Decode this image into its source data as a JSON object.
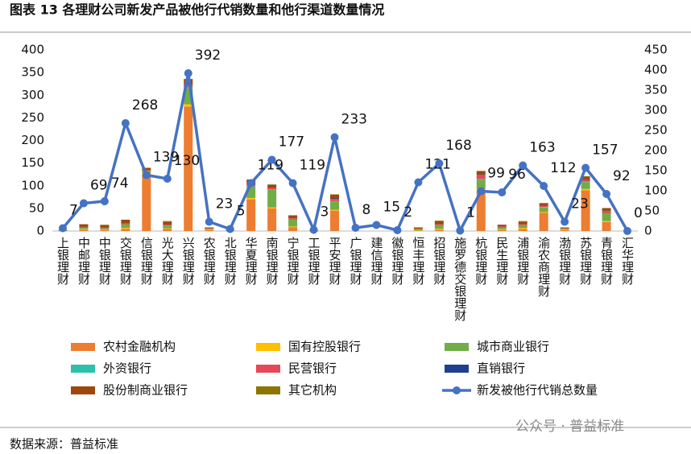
{
  "chart_data": {
    "type": "bar",
    "title": "图表 13 各理财公司新发产品被他行代销数量和他行渠道数量情况",
    "source": "数据来源：普益标准",
    "watermark": "公众号 · 普益标准",
    "categories": [
      "上银理财",
      "中邮理财",
      "中银理财",
      "交银理财",
      "信银理财",
      "光大理财",
      "兴银理财",
      "农银理财",
      "北银理财",
      "华夏理财",
      "南银理财",
      "宁银理财",
      "工银理财",
      "平安理财",
      "广银理财",
      "建信理财",
      "徽银理财",
      "恒丰理财",
      "招银理财",
      "施罗德交银理财",
      "杭银理财",
      "民生理财",
      "浦银理财",
      "渝农商理财",
      "渤银理财",
      "苏银理财",
      "青银理财",
      "汇华理财"
    ],
    "ylim": [
      0,
      400
    ],
    "yticks": [
      0,
      50,
      100,
      150,
      200,
      250,
      300,
      350,
      400
    ],
    "y2lim": [
      0,
      450
    ],
    "y2ticks": [
      0,
      50,
      100,
      150,
      200,
      250,
      300,
      350,
      400,
      450
    ],
    "stacked": true,
    "series": [
      {
        "name": "农村金融机构",
        "color": "#ed7d31",
        "values": [
          0,
          3,
          2,
          5,
          125,
          5,
          275,
          2,
          0,
          70,
          50,
          8,
          0,
          45,
          0,
          0,
          0,
          0,
          3,
          0,
          90,
          3,
          5,
          40,
          2,
          90,
          20,
          0
        ]
      },
      {
        "name": "国有控股银行",
        "color": "#ffc000",
        "values": [
          0,
          1,
          1,
          2,
          3,
          1,
          5,
          1,
          0,
          3,
          2,
          2,
          0,
          2,
          0,
          0,
          0,
          1,
          2,
          0,
          3,
          1,
          2,
          2,
          1,
          3,
          2,
          0
        ]
      },
      {
        "name": "城市商业银行",
        "color": "#70ad47",
        "values": [
          1,
          3,
          3,
          8,
          5,
          6,
          35,
          2,
          1,
          25,
          40,
          15,
          1,
          18,
          0,
          0,
          0,
          3,
          8,
          0,
          20,
          4,
          6,
          10,
          2,
          15,
          18,
          0
        ]
      },
      {
        "name": "外资银行",
        "color": "#2fbfae",
        "values": [
          0,
          0,
          0,
          0,
          0,
          0,
          2,
          0,
          0,
          1,
          0,
          0,
          0,
          1,
          0,
          0,
          0,
          0,
          0,
          0,
          2,
          0,
          0,
          1,
          0,
          1,
          0,
          0
        ]
      },
      {
        "name": "民营银行",
        "color": "#e6475a",
        "values": [
          0,
          2,
          2,
          2,
          1,
          2,
          5,
          1,
          0,
          5,
          4,
          3,
          0,
          5,
          0,
          0,
          0,
          1,
          2,
          0,
          8,
          2,
          2,
          3,
          1,
          4,
          4,
          0
        ]
      },
      {
        "name": "直销银行",
        "color": "#203f8f",
        "values": [
          0,
          0,
          0,
          0,
          0,
          0,
          1,
          0,
          0,
          1,
          1,
          0,
          0,
          1,
          0,
          0,
          0,
          0,
          0,
          0,
          1,
          0,
          0,
          0,
          0,
          1,
          1,
          0
        ]
      },
      {
        "name": "股份制商业银行",
        "color": "#9e480e",
        "values": [
          1,
          6,
          5,
          8,
          5,
          7,
          12,
          2,
          1,
          8,
          5,
          6,
          1,
          8,
          0,
          0,
          0,
          3,
          7,
          0,
          8,
          4,
          6,
          5,
          2,
          6,
          5,
          0
        ]
      },
      {
        "name": "其它机构",
        "color": "#8d7600",
        "values": [
          0,
          0,
          1,
          0,
          1,
          1,
          1,
          0,
          0,
          1,
          1,
          1,
          0,
          1,
          0,
          0,
          0,
          0,
          1,
          0,
          1,
          0,
          1,
          1,
          0,
          1,
          1,
          0
        ]
      },
      {
        "name": "新发被他行代销总数量",
        "color": "#4472c4",
        "type": "line",
        "axis": "y2",
        "values": [
          7,
          69,
          74,
          268,
          139,
          130,
          392,
          23,
          5,
          119,
          177,
          119,
          3,
          233,
          8,
          15,
          2,
          121,
          168,
          1,
          99,
          96,
          163,
          112,
          23,
          157,
          92,
          0
        ]
      }
    ]
  }
}
